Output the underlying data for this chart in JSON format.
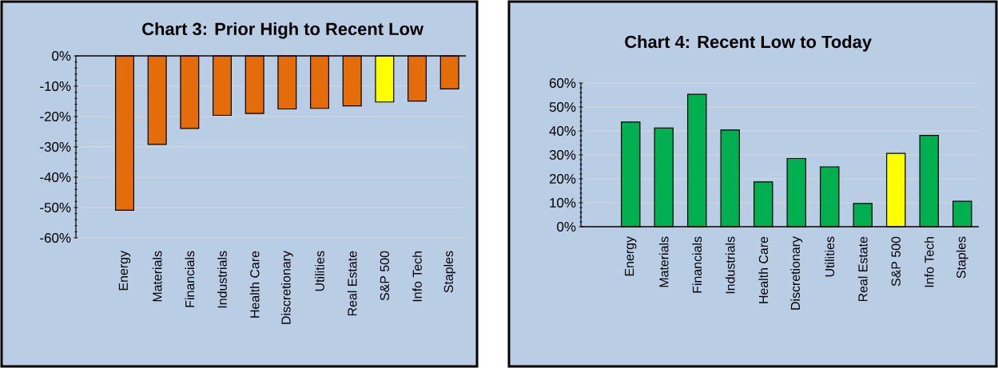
{
  "chart_data": [
    {
      "type": "bar",
      "title": "Chart 3: Prior High to Recent Low",
      "categories": [
        null,
        "Energy",
        "Materials",
        "Financials",
        "Industrials",
        "Health Care",
        "Discretionary",
        "Utilities",
        "Real Estate",
        "S&P 500",
        "Info Tech",
        "Staples"
      ],
      "values": [
        null,
        -50.9,
        -29.2,
        -23.9,
        -19.6,
        -19.0,
        -17.5,
        -17.3,
        -16.5,
        -15.2,
        -14.9,
        -10.9
      ],
      "colors": [
        null,
        "#e46c0a",
        "#e46c0a",
        "#e46c0a",
        "#e46c0a",
        "#e46c0a",
        "#e46c0a",
        "#e46c0a",
        "#e46c0a",
        "#ffff00",
        "#e46c0a",
        "#e46c0a"
      ],
      "ylim": [
        -60,
        0
      ],
      "yticks": [
        {
          "value": 0,
          "label": "0%"
        },
        {
          "value": -10,
          "label": "-10%"
        },
        {
          "value": -20,
          "label": "-20%"
        },
        {
          "value": -30,
          "label": "-30%"
        },
        {
          "value": -40,
          "label": "-40%"
        },
        {
          "value": -50,
          "label": "-50%"
        },
        {
          "value": -60,
          "label": "-60%"
        }
      ],
      "grid": "y"
    },
    {
      "type": "bar",
      "title": "Chart 4: Recent Low to Today",
      "categories": [
        null,
        "Energy",
        "Materials",
        "Financials",
        "Industrials",
        "Health Care",
        "Discretionary",
        "Utilities",
        "Real Estate",
        "S&P 500",
        "Info Tech",
        "Staples"
      ],
      "values": [
        null,
        43.7,
        41.2,
        55.3,
        40.4,
        18.7,
        28.5,
        25.0,
        9.7,
        30.6,
        38.1,
        10.6
      ],
      "colors": [
        null,
        "#00b050",
        "#00b050",
        "#00b050",
        "#00b050",
        "#00b050",
        "#00b050",
        "#00b050",
        "#00b050",
        "#ffff00",
        "#00b050",
        "#00b050"
      ],
      "ylim": [
        0,
        60
      ],
      "yticks": [
        {
          "value": 0,
          "label": "0%"
        },
        {
          "value": 10,
          "label": "10%"
        },
        {
          "value": 20,
          "label": "20%"
        },
        {
          "value": 30,
          "label": "30%"
        },
        {
          "value": 40,
          "label": "40%"
        },
        {
          "value": 50,
          "label": "50%"
        },
        {
          "value": 60,
          "label": "60%"
        }
      ],
      "grid": "y"
    }
  ]
}
